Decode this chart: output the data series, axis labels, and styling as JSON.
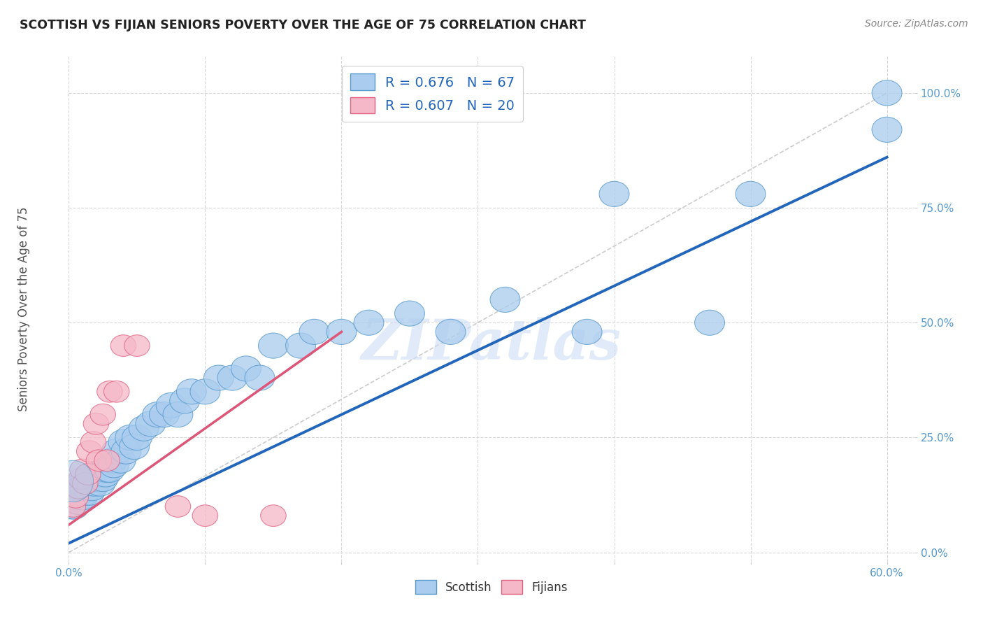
{
  "title": "SCOTTISH VS FIJIAN SENIORS POVERTY OVER THE AGE OF 75 CORRELATION CHART",
  "source": "Source: ZipAtlas.com",
  "ylabel": "Seniors Poverty Over the Age of 75",
  "xlim": [
    0.0,
    0.62
  ],
  "ylim": [
    -0.02,
    1.08
  ],
  "xticks": [
    0.0,
    0.1,
    0.2,
    0.3,
    0.4,
    0.5,
    0.6
  ],
  "yticks": [
    0.0,
    0.25,
    0.5,
    0.75,
    1.0
  ],
  "ytick_labels": [
    "0.0%",
    "25.0%",
    "50.0%",
    "75.0%",
    "100.0%"
  ],
  "xtick_labels": [
    "0.0%",
    "",
    "",
    "",
    "",
    "",
    "60.0%"
  ],
  "background_color": "#ffffff",
  "grid_color": "#d8d8d8",
  "watermark_text": "ZIPatlas",
  "scottish_color": "#aaccee",
  "fijian_color": "#f5b8c8",
  "scottish_edge_color": "#5599cc",
  "fijian_edge_color": "#e06080",
  "regression_scottish_color": "#2266bb",
  "regression_fijian_color": "#dd5577",
  "diagonal_color": "#cccccc",
  "tick_color": "#5599cc",
  "scottish_x": [
    0.002,
    0.003,
    0.004,
    0.005,
    0.005,
    0.006,
    0.007,
    0.008,
    0.009,
    0.01,
    0.01,
    0.011,
    0.012,
    0.013,
    0.014,
    0.015,
    0.015,
    0.016,
    0.017,
    0.018,
    0.019,
    0.02,
    0.021,
    0.022,
    0.023,
    0.024,
    0.025,
    0.026,
    0.027,
    0.028,
    0.03,
    0.032,
    0.033,
    0.035,
    0.038,
    0.04,
    0.042,
    0.045,
    0.048,
    0.05,
    0.055,
    0.06,
    0.065,
    0.07,
    0.075,
    0.08,
    0.085,
    0.09,
    0.1,
    0.11,
    0.12,
    0.13,
    0.14,
    0.15,
    0.17,
    0.18,
    0.2,
    0.22,
    0.25,
    0.28,
    0.32,
    0.38,
    0.4,
    0.47,
    0.5,
    0.6,
    0.6
  ],
  "scottish_y": [
    0.1,
    0.12,
    0.1,
    0.13,
    0.12,
    0.14,
    0.11,
    0.13,
    0.14,
    0.12,
    0.15,
    0.14,
    0.13,
    0.15,
    0.14,
    0.13,
    0.16,
    0.15,
    0.14,
    0.16,
    0.15,
    0.16,
    0.17,
    0.16,
    0.15,
    0.17,
    0.16,
    0.18,
    0.17,
    0.18,
    0.18,
    0.2,
    0.19,
    0.22,
    0.2,
    0.24,
    0.22,
    0.25,
    0.23,
    0.25,
    0.27,
    0.28,
    0.3,
    0.3,
    0.32,
    0.3,
    0.33,
    0.35,
    0.35,
    0.38,
    0.38,
    0.4,
    0.38,
    0.45,
    0.45,
    0.48,
    0.48,
    0.5,
    0.52,
    0.48,
    0.55,
    0.48,
    0.78,
    0.5,
    0.78,
    0.92,
    1.0
  ],
  "scottish_sizes_x": [
    0.003,
    0.003,
    0.003,
    0.003,
    0.003,
    0.003,
    0.003,
    0.003,
    0.003,
    0.003,
    0.003,
    0.003,
    0.003,
    0.003,
    0.003,
    0.003,
    0.003,
    0.003,
    0.003,
    0.003,
    0.003,
    0.003,
    0.003,
    0.003,
    0.003,
    0.003,
    0.003,
    0.003,
    0.003,
    0.003,
    0.004,
    0.004,
    0.004,
    0.004,
    0.004,
    0.004,
    0.004,
    0.004,
    0.004,
    0.004,
    0.005,
    0.005,
    0.005,
    0.005,
    0.005,
    0.005,
    0.005,
    0.005,
    0.005,
    0.005,
    0.006,
    0.006,
    0.006,
    0.006,
    0.006,
    0.006,
    0.006,
    0.007,
    0.007,
    0.007,
    0.008,
    0.008,
    0.008,
    0.009,
    0.009,
    0.01,
    0.02
  ],
  "fijian_x": [
    0.003,
    0.005,
    0.007,
    0.009,
    0.01,
    0.012,
    0.014,
    0.015,
    0.018,
    0.02,
    0.022,
    0.025,
    0.028,
    0.03,
    0.035,
    0.04,
    0.05,
    0.08,
    0.1,
    0.15
  ],
  "fijian_y": [
    0.1,
    0.12,
    0.14,
    0.16,
    0.18,
    0.15,
    0.17,
    0.22,
    0.24,
    0.28,
    0.2,
    0.3,
    0.2,
    0.35,
    0.35,
    0.45,
    0.45,
    0.1,
    0.08,
    0.08
  ],
  "fijian_sizes_x": [
    0.004,
    0.004,
    0.004,
    0.004,
    0.004,
    0.004,
    0.004,
    0.004,
    0.004,
    0.004,
    0.004,
    0.004,
    0.004,
    0.004,
    0.004,
    0.004,
    0.004,
    0.004,
    0.004,
    0.004
  ],
  "regression_scottish_x0": 0.0,
  "regression_scottish_x1": 0.6,
  "regression_scottish_y0": 0.02,
  "regression_scottish_y1": 0.86,
  "regression_fijian_x0": 0.0,
  "regression_fijian_x1": 0.2,
  "regression_fijian_y0": 0.06,
  "regression_fijian_y1": 0.48
}
